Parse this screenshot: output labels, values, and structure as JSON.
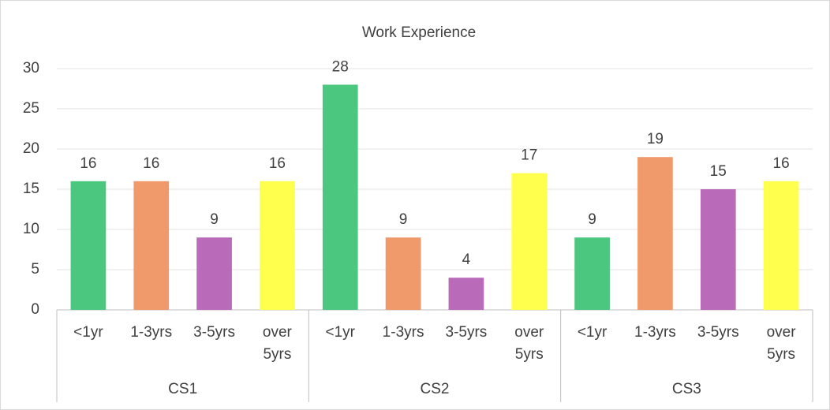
{
  "chart_data": {
    "type": "bar",
    "title": "Work Experience",
    "categories": [
      "CS1",
      "CS2",
      "CS3"
    ],
    "series": [
      {
        "name": "<1yr",
        "color": "#4cc77f",
        "values": [
          16,
          28,
          9
        ]
      },
      {
        "name": "1-3yrs",
        "color": "#f09a6c",
        "values": [
          16,
          9,
          19
        ]
      },
      {
        "name": "3-5yrs",
        "color": "#b96bb9",
        "values": [
          9,
          4,
          15
        ]
      },
      {
        "name": "over 5yrs",
        "color": "#ffff4d",
        "values": [
          16,
          17,
          16
        ]
      }
    ],
    "ylim": [
      0,
      30
    ],
    "yticks": [
      0,
      5,
      10,
      15,
      20,
      25,
      30
    ],
    "grid": true
  }
}
